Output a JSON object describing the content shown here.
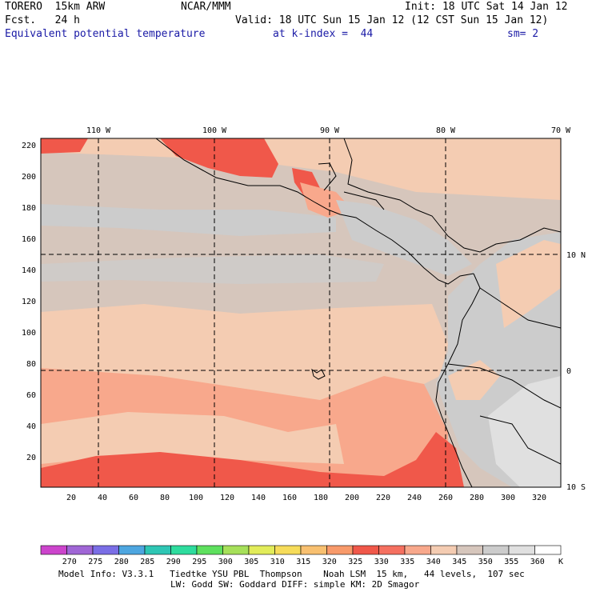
{
  "header": {
    "model": "TORERO  15km ARW",
    "org": "NCAR/MMM",
    "init": "Init: 18 UTC Sat 14 Jan 12",
    "fcst": "Fcst.   24 h",
    "valid": "Valid: 18 UTC Sun 15 Jan 12 (12 CST Sun 15 Jan 12)",
    "field": "Equivalent potential temperature",
    "level": "at k-index =  44",
    "smooth": "sm= 2"
  },
  "axes": {
    "top_lon": [
      "110 W",
      "100 W",
      "90 W",
      "80 W",
      "70 W"
    ],
    "right_lat": [
      "10 N",
      "0",
      "10 S"
    ],
    "left_y": [
      "220",
      "200",
      "180",
      "160",
      "140",
      "120",
      "100",
      "80",
      "60",
      "40",
      "20"
    ],
    "bottom_x": [
      "20",
      "40",
      "60",
      "80",
      "100",
      "120",
      "140",
      "160",
      "180",
      "200",
      "220",
      "240",
      "260",
      "280",
      "300",
      "320"
    ]
  },
  "colorbar": {
    "labels": [
      "270",
      "275",
      "280",
      "285",
      "290",
      "295",
      "300",
      "305",
      "310",
      "315",
      "320",
      "325",
      "330",
      "335",
      "340",
      "345",
      "350",
      "355",
      "360"
    ],
    "unit": "K",
    "colors": [
      "#cc44cc",
      "#a066d6",
      "#7a6ee6",
      "#4ea6e0",
      "#2ec6b4",
      "#2edc9e",
      "#5ee05e",
      "#a6e05a",
      "#e2ec5a",
      "#f6dc5a",
      "#f8c070",
      "#f89a6a",
      "#f0584a",
      "#f57060",
      "#f8a88c",
      "#f4ccb2",
      "#d6c6bc",
      "#cccccc",
      "#e0e0e0",
      "#ffffff"
    ]
  },
  "footer": {
    "line1": "Model Info: V3.3.1   Tiedtke YSU PBL  Thompson    Noah LSM  15 km,   44 levels,  107 sec",
    "line2": "LW: Godd SW: Goddard DIFF: simple KM: 2D Smagor"
  }
}
